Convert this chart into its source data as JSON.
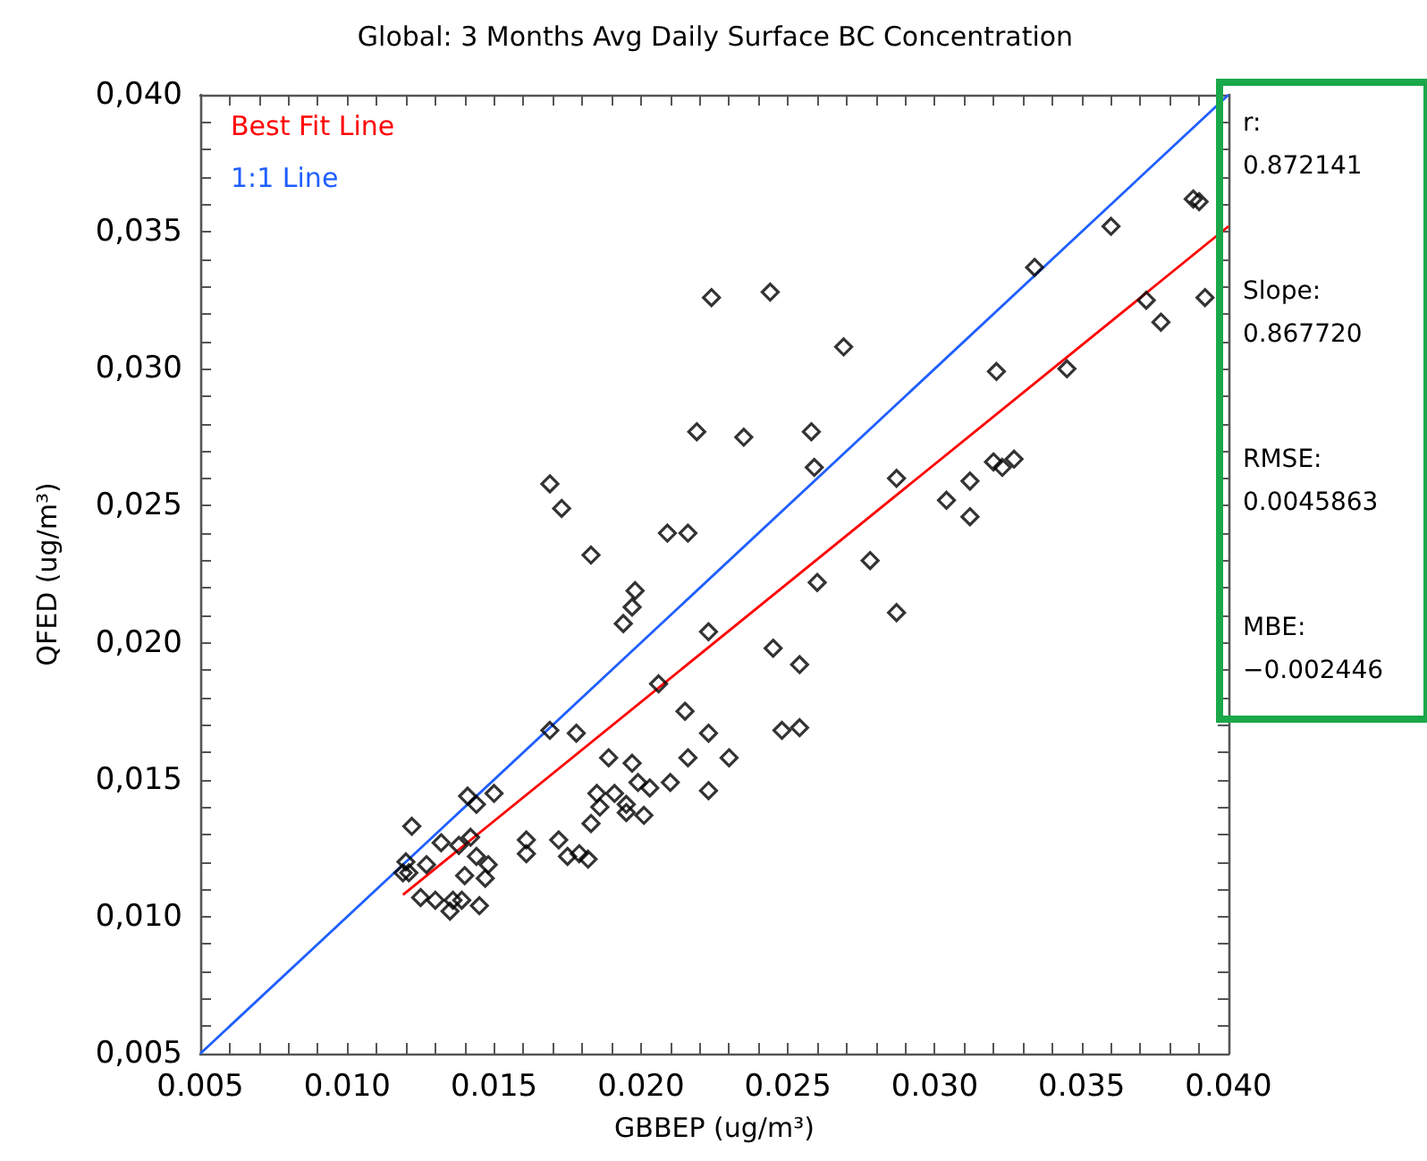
{
  "chart_data": {
    "type": "scatter",
    "title": "Global: 3 Months Avg Daily Surface BC Concentration",
    "xlabel": "GBBEP (ug/m³)",
    "ylabel": "QFED (ug/m³)",
    "xlim": [
      0.005,
      0.04
    ],
    "ylim": [
      0.005,
      0.04
    ],
    "xticks": [
      {
        "value": 0.005,
        "label": "0.005"
      },
      {
        "value": 0.006,
        "label": null
      },
      {
        "value": 0.007,
        "label": null
      },
      {
        "value": 0.008,
        "label": null
      },
      {
        "value": 0.009,
        "label": null
      },
      {
        "value": 0.01,
        "label": "0.010"
      },
      {
        "value": 0.011,
        "label": null
      },
      {
        "value": 0.012,
        "label": null
      },
      {
        "value": 0.013,
        "label": null
      },
      {
        "value": 0.014,
        "label": null
      },
      {
        "value": 0.015,
        "label": "0.015"
      },
      {
        "value": 0.016,
        "label": null
      },
      {
        "value": 0.017,
        "label": null
      },
      {
        "value": 0.018,
        "label": null
      },
      {
        "value": 0.019,
        "label": null
      },
      {
        "value": 0.02,
        "label": "0.020"
      },
      {
        "value": 0.021,
        "label": null
      },
      {
        "value": 0.022,
        "label": null
      },
      {
        "value": 0.023,
        "label": null
      },
      {
        "value": 0.024,
        "label": null
      },
      {
        "value": 0.025,
        "label": "0.025"
      },
      {
        "value": 0.026,
        "label": null
      },
      {
        "value": 0.027,
        "label": null
      },
      {
        "value": 0.028,
        "label": null
      },
      {
        "value": 0.029,
        "label": null
      },
      {
        "value": 0.03,
        "label": "0.030"
      },
      {
        "value": 0.031,
        "label": null
      },
      {
        "value": 0.032,
        "label": null
      },
      {
        "value": 0.033,
        "label": null
      },
      {
        "value": 0.034,
        "label": null
      },
      {
        "value": 0.035,
        "label": "0.035"
      },
      {
        "value": 0.036,
        "label": null
      },
      {
        "value": 0.037,
        "label": null
      },
      {
        "value": 0.038,
        "label": null
      },
      {
        "value": 0.039,
        "label": null
      },
      {
        "value": 0.04,
        "label": "0.040"
      }
    ],
    "yticks": [
      {
        "value": 0.005,
        "label": "0,005"
      },
      {
        "value": 0.006,
        "label": null
      },
      {
        "value": 0.007,
        "label": null
      },
      {
        "value": 0.008,
        "label": null
      },
      {
        "value": 0.009,
        "label": null
      },
      {
        "value": 0.01,
        "label": "0,010"
      },
      {
        "value": 0.011,
        "label": null
      },
      {
        "value": 0.012,
        "label": null
      },
      {
        "value": 0.013,
        "label": null
      },
      {
        "value": 0.014,
        "label": null
      },
      {
        "value": 0.015,
        "label": "0,015"
      },
      {
        "value": 0.016,
        "label": null
      },
      {
        "value": 0.017,
        "label": null
      },
      {
        "value": 0.018,
        "label": null
      },
      {
        "value": 0.019,
        "label": null
      },
      {
        "value": 0.02,
        "label": "0,020"
      },
      {
        "value": 0.021,
        "label": null
      },
      {
        "value": 0.022,
        "label": null
      },
      {
        "value": 0.023,
        "label": null
      },
      {
        "value": 0.024,
        "label": null
      },
      {
        "value": 0.025,
        "label": "0,025"
      },
      {
        "value": 0.026,
        "label": null
      },
      {
        "value": 0.027,
        "label": null
      },
      {
        "value": 0.028,
        "label": null
      },
      {
        "value": 0.029,
        "label": null
      },
      {
        "value": 0.03,
        "label": "0,030"
      },
      {
        "value": 0.031,
        "label": null
      },
      {
        "value": 0.032,
        "label": null
      },
      {
        "value": 0.033,
        "label": null
      },
      {
        "value": 0.034,
        "label": null
      },
      {
        "value": 0.035,
        "label": "0,035"
      },
      {
        "value": 0.036,
        "label": null
      },
      {
        "value": 0.037,
        "label": null
      },
      {
        "value": 0.038,
        "label": null
      },
      {
        "value": 0.039,
        "label": null
      },
      {
        "value": 0.04,
        "label": "0,040"
      }
    ],
    "legend": "top left",
    "marker": "diamond",
    "annotations": [
      "r:",
      "0.872141",
      "Slope:",
      "0.867720",
      "RMSE:",
      "0.0045863",
      "MBE:",
      "−0.002446"
    ],
    "series": [
      {
        "color": "#000000",
        "x": [
          0.0183,
          0.0198,
          0.0197,
          0.0194,
          0.0223,
          0.0206,
          0.0215,
          0.0169,
          0.0178,
          0.0223,
          0.0189,
          0.0197,
          0.0216,
          0.021,
          0.0223,
          0.015,
          0.0141,
          0.0144,
          0.0185,
          0.0191,
          0.0199,
          0.0203,
          0.0186,
          0.0195,
          0.0195,
          0.0201,
          0.0183,
          0.0122,
          0.0132,
          0.0142,
          0.0138,
          0.0161,
          0.0172,
          0.0161,
          0.0175,
          0.0179,
          0.0182,
          0.012,
          0.0127,
          0.0119,
          0.0121,
          0.0144,
          0.0148,
          0.014,
          0.0147,
          0.0125,
          0.013,
          0.0135,
          0.0136,
          0.0139,
          0.0145,
          0.0169,
          0.0173,
          0.0209,
          0.0216,
          0.0224,
          0.0219,
          0.0244,
          0.0269,
          0.0334,
          0.036,
          0.0388,
          0.039,
          0.0372,
          0.0377,
          0.0392,
          0.0321,
          0.0345,
          0.0235,
          0.0258,
          0.0259,
          0.0287,
          0.0304,
          0.0312,
          0.0312,
          0.032,
          0.0323,
          0.0327,
          0.0278,
          0.026,
          0.0287,
          0.0245,
          0.0254,
          0.023,
          0.0248,
          0.0254
        ],
        "values": [
          0.0232,
          0.0219,
          0.0213,
          0.0207,
          0.0204,
          0.0185,
          0.0175,
          0.0168,
          0.0167,
          0.0167,
          0.0158,
          0.0156,
          0.0158,
          0.0149,
          0.0146,
          0.0145,
          0.0144,
          0.0141,
          0.0145,
          0.0145,
          0.0149,
          0.0147,
          0.014,
          0.0141,
          0.0138,
          0.0137,
          0.0134,
          0.0133,
          0.0127,
          0.0129,
          0.0126,
          0.0128,
          0.0128,
          0.0123,
          0.0122,
          0.0123,
          0.0121,
          0.012,
          0.0119,
          0.0116,
          0.0116,
          0.0122,
          0.0119,
          0.0115,
          0.0114,
          0.0107,
          0.0106,
          0.0102,
          0.0106,
          0.0106,
          0.0104,
          0.0258,
          0.0249,
          0.024,
          0.024,
          0.0326,
          0.0277,
          0.0328,
          0.0308,
          0.0337,
          0.0352,
          0.0362,
          0.0361,
          0.0325,
          0.0317,
          0.0326,
          0.0299,
          0.03,
          0.0275,
          0.0277,
          0.0264,
          0.026,
          0.0252,
          0.0259,
          0.0246,
          0.0266,
          0.0264,
          0.0267,
          0.023,
          0.0222,
          0.0211,
          0.0198,
          0.0192,
          0.0158,
          0.0168,
          0.0169
        ]
      },
      {
        "type": "line",
        "name": "Best Fit Line",
        "color": "#ff0000",
        "marker": "none",
        "x": [
          0.0119,
          0.04
        ],
        "values": [
          0.0108,
          0.0352
        ]
      },
      {
        "type": "line",
        "name": "1:1 Line",
        "color": "#1f5fff",
        "marker": "none",
        "x": [
          0.005,
          0.04
        ],
        "values": [
          0.005,
          0.04
        ]
      }
    ]
  }
}
